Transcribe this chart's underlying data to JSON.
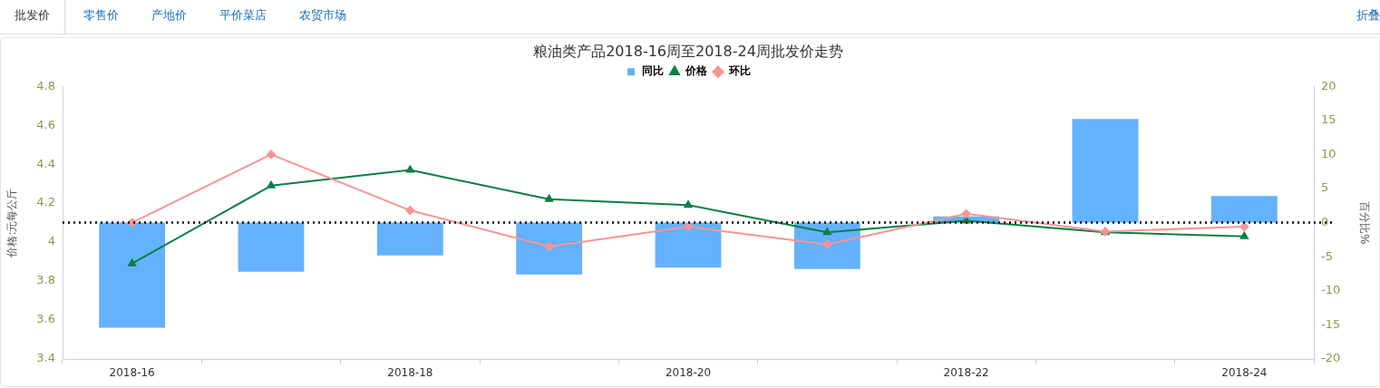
{
  "chart_data": {
    "type": "bar",
    "title": "粮油类产品2018-16周至2018-24周批发价走势",
    "categories": [
      "2018-16",
      null,
      "2018-18",
      null,
      "2018-20",
      null,
      "2018-22",
      null,
      "2018-24"
    ],
    "series": [
      {
        "name": "同比",
        "axis": "y2",
        "color": "#64b1fe",
        "values": [
          -15.4,
          -7.2,
          -4.8,
          -7.6,
          -6.6,
          -6.8,
          0.9,
          15.2,
          3.9
        ]
      },
      {
        "name": "价格",
        "type": "line",
        "axis": "y",
        "marker": "triangle",
        "color": "#0a7f45",
        "values": [
          3.89,
          4.29,
          4.37,
          4.22,
          4.19,
          4.05,
          4.11,
          4.05,
          4.03
        ]
      },
      {
        "name": "环比",
        "type": "line",
        "axis": "y2",
        "marker": "diamond",
        "color": "#f99494",
        "values": [
          0,
          10.0,
          1.8,
          -3.5,
          -0.6,
          -3.2,
          1.3,
          -1.3,
          -0.6
        ]
      }
    ],
    "ylabel": "价格:元每公斤",
    "y2label": "百分比%",
    "ylim": [
      3.4,
      4.8
    ],
    "yticks": [
      3.4,
      3.6,
      3.8,
      4,
      4.2,
      4.4,
      4.6,
      4.8
    ],
    "y2lim": [
      -20,
      20
    ],
    "y2ticks": [
      -20,
      -15,
      -10,
      -5,
      0,
      5,
      10,
      15,
      20
    ],
    "ref_lines": [
      {
        "axis": "y2",
        "value": 0,
        "color": "#000000",
        "line_style": "dotted"
      }
    ],
    "legend": "top",
    "annotations": [
      "批发价",
      "零售价",
      "产地价",
      "平价菜店",
      "农贸市场",
      "折叠"
    ]
  }
}
